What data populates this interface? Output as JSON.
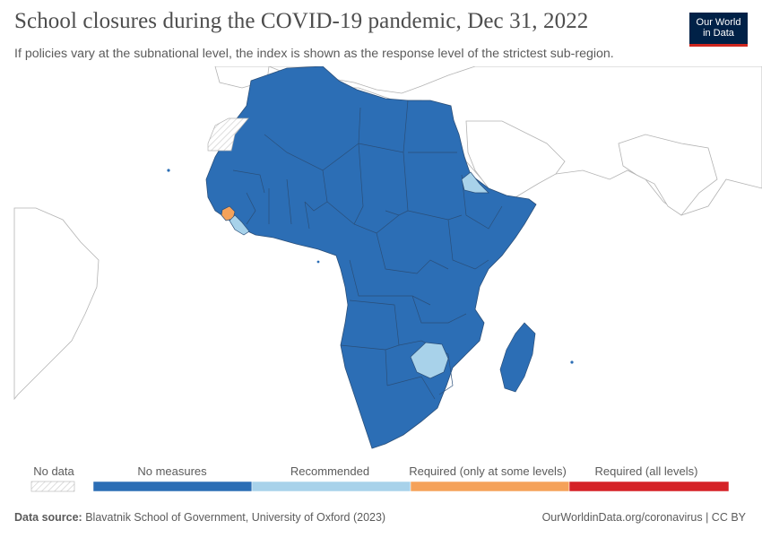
{
  "header": {
    "title": "School closures during the COVID-19 pandemic, Dec 31, 2022",
    "subtitle": "If policies vary at the subnational level, the index is shown as the response level of the strictest sub-region."
  },
  "logo": {
    "line1": "Our World",
    "line2": "in Data"
  },
  "legend": {
    "no_data_label": "No data",
    "bins": [
      {
        "label": "No measures",
        "color": "#2c6eb5"
      },
      {
        "label": "Recommended",
        "color": "#a8d2ea"
      },
      {
        "label": "Required (only at some levels)",
        "color": "#f5a25a"
      },
      {
        "label": "Required (all levels)",
        "color": "#d52126"
      }
    ]
  },
  "colors": {
    "no_measures": "#2c6eb5",
    "recommended": "#a8d2ea",
    "required_some": "#f5a25a",
    "required_all": "#d52126",
    "border": "#3a5a80",
    "background_land": "#ffffff",
    "background_stroke": "#b3b3b3"
  },
  "footer": {
    "source_label": "Data source:",
    "source_text": "Blavatnik School of Government, University of Oxford (2023)",
    "link_text": "OurWorldinData.org/coronavirus",
    "license": "| CC BY"
  }
}
